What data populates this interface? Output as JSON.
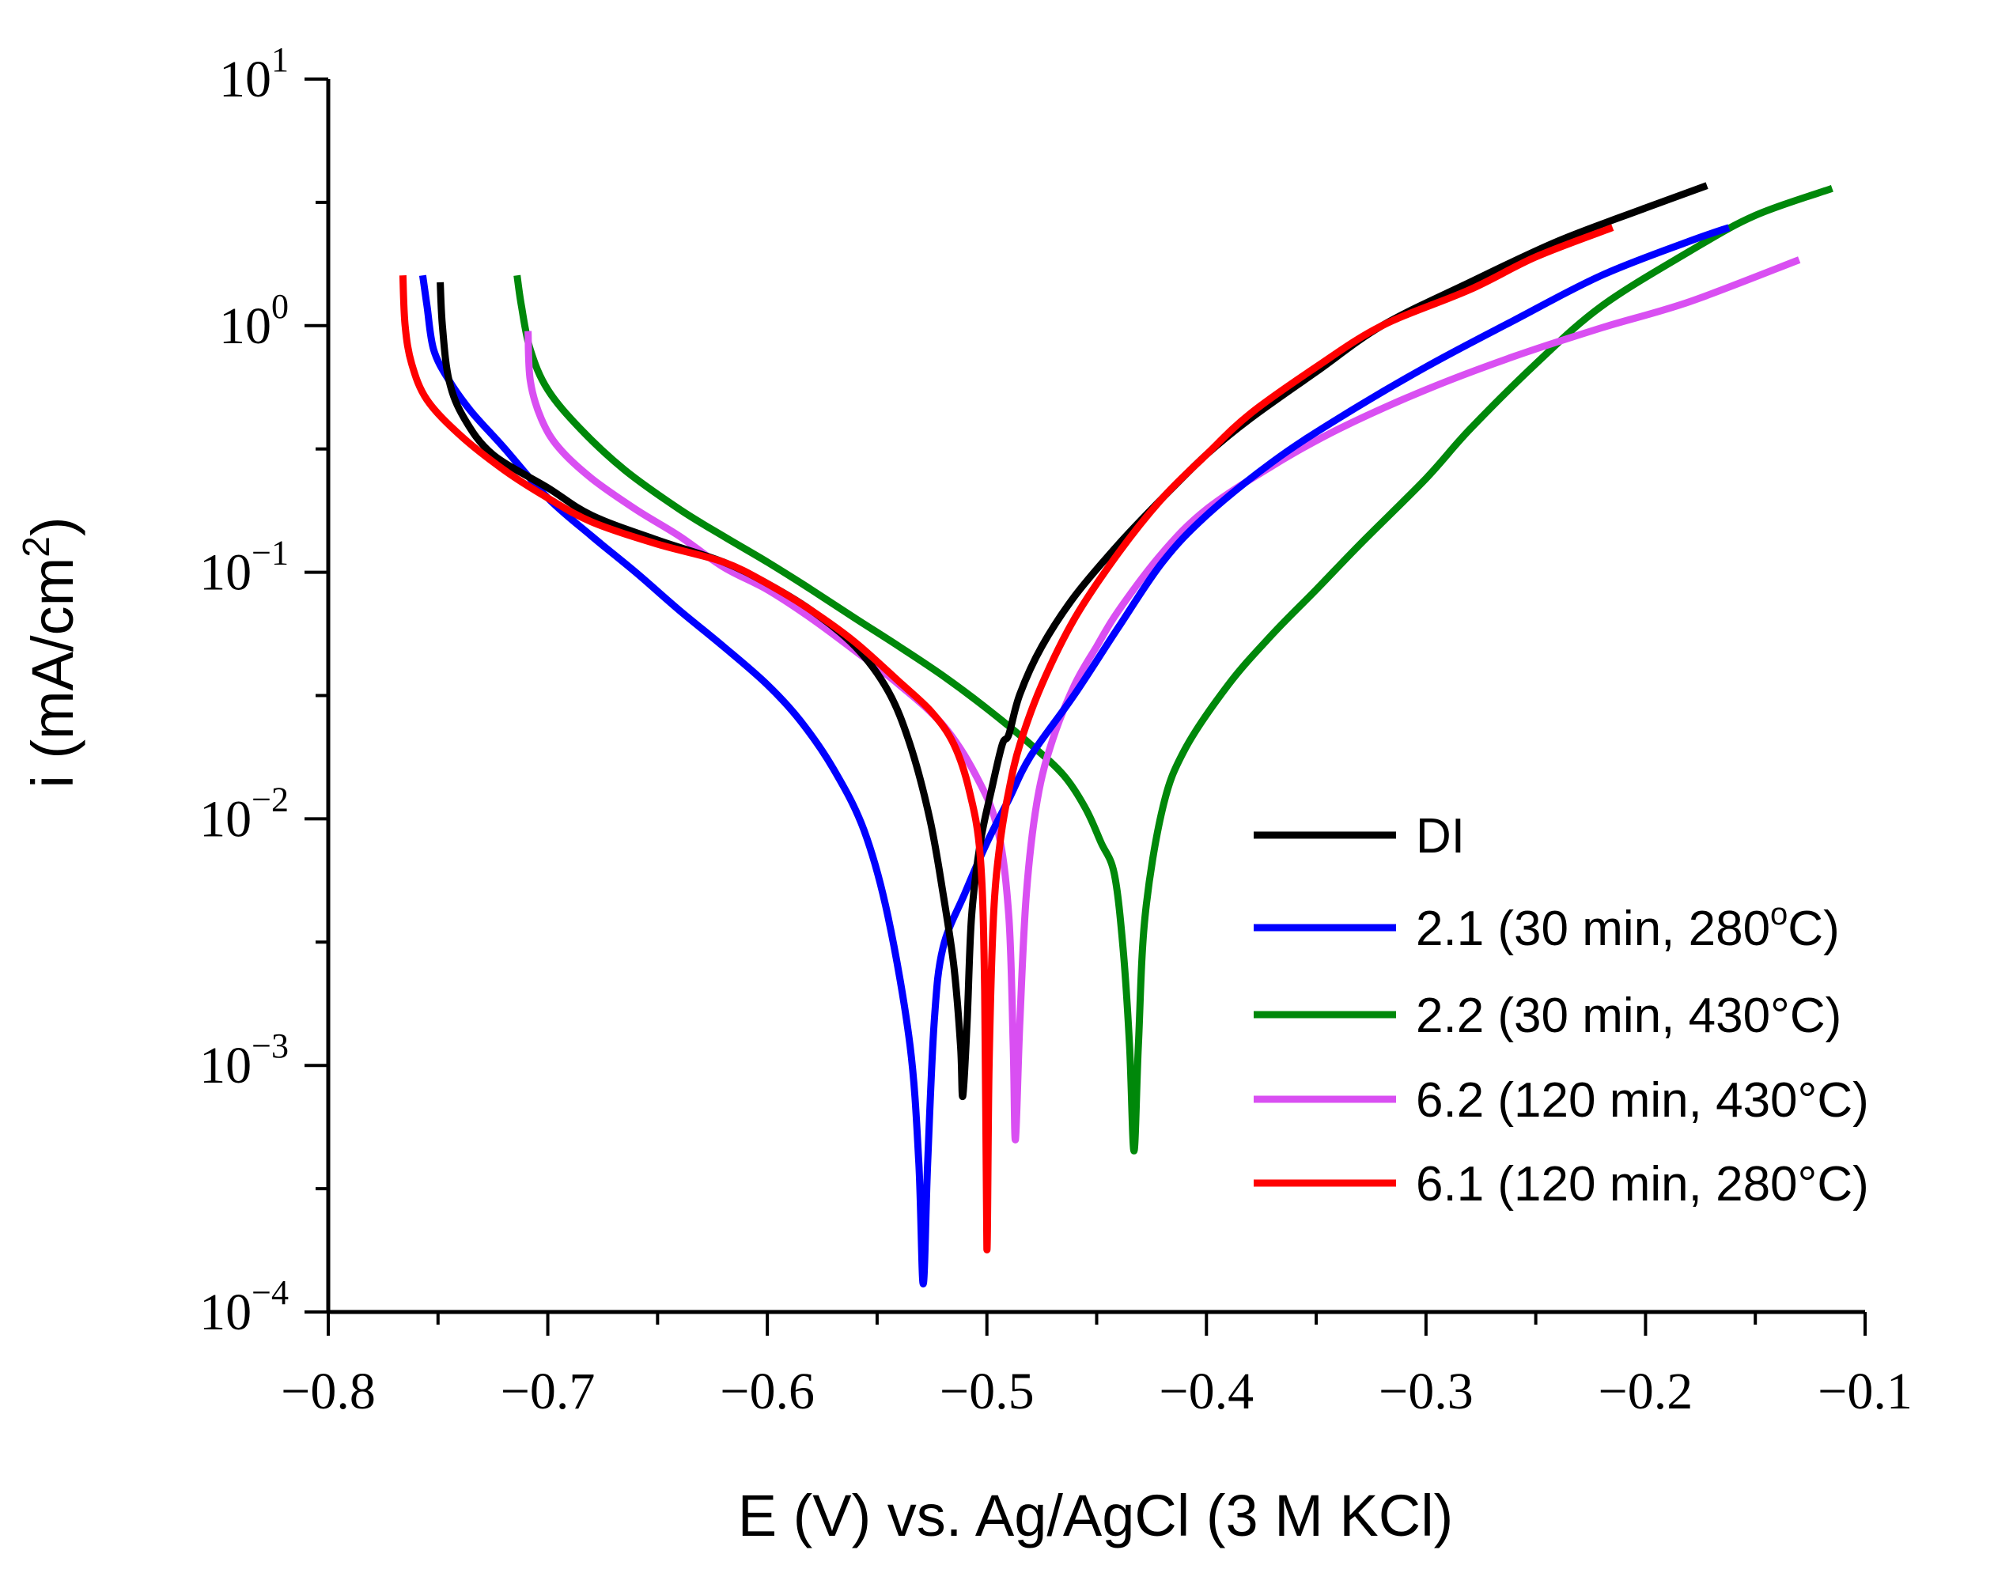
{
  "chart_data": {
    "type": "line",
    "title": "",
    "xlabel": "E (V) vs. Ag/AgCl (3 M KCl)",
    "ylabel_parts": {
      "main": "i (mA/cm",
      "sup": "2",
      "close": ")"
    },
    "ylabel": "i (mA/cm2)",
    "xscale": "linear",
    "yscale": "log",
    "xlim": [
      -0.8,
      -0.1
    ],
    "ylim": [
      0.0001,
      10
    ],
    "x_tick_labels": [
      "−0.8",
      "−0.7",
      "−0.6",
      "−0.5",
      "−0.4",
      "−0.3",
      "−0.2",
      "−0.1"
    ],
    "x_ticks": [
      -0.8,
      -0.7,
      -0.6,
      -0.5,
      -0.4,
      -0.3,
      -0.2,
      -0.1
    ],
    "y_ticks": [
      {
        "value": 0.0001,
        "base": "10",
        "exp": "−4"
      },
      {
        "value": 0.001,
        "base": "10",
        "exp": "−3"
      },
      {
        "value": 0.01,
        "base": "10",
        "exp": "−2"
      },
      {
        "value": 0.1,
        "base": "10",
        "exp": "−1"
      },
      {
        "value": 1,
        "base": "10",
        "exp": "0"
      },
      {
        "value": 10,
        "base": "10",
        "exp": "1"
      }
    ],
    "legend_position": "lower-right",
    "series": [
      {
        "name": "DI",
        "color": "#000000",
        "points": [
          [
            -0.749,
            1.5
          ],
          [
            -0.748,
            1.0
          ],
          [
            -0.745,
            0.6
          ],
          [
            -0.738,
            0.42
          ],
          [
            -0.725,
            0.3
          ],
          [
            -0.7,
            0.22
          ],
          [
            -0.68,
            0.17
          ],
          [
            -0.65,
            0.135
          ],
          [
            -0.62,
            0.11
          ],
          [
            -0.6,
            0.09
          ],
          [
            -0.58,
            0.07
          ],
          [
            -0.56,
            0.05
          ],
          [
            -0.545,
            0.033
          ],
          [
            -0.535,
            0.02
          ],
          [
            -0.526,
            0.01
          ],
          [
            -0.52,
            0.005
          ],
          [
            -0.515,
            0.0025
          ],
          [
            -0.512,
            0.0012
          ],
          [
            -0.511,
            0.00075
          ],
          [
            -0.509,
            0.0015
          ],
          [
            -0.507,
            0.004
          ],
          [
            -0.503,
            0.008
          ],
          [
            -0.498,
            0.013
          ],
          [
            -0.493,
            0.02
          ],
          [
            -0.49,
            0.022
          ],
          [
            -0.485,
            0.032
          ],
          [
            -0.475,
            0.05
          ],
          [
            -0.46,
            0.08
          ],
          [
            -0.44,
            0.13
          ],
          [
            -0.42,
            0.2
          ],
          [
            -0.4,
            0.3
          ],
          [
            -0.38,
            0.42
          ],
          [
            -0.35,
            0.65
          ],
          [
            -0.32,
            1.0
          ],
          [
            -0.28,
            1.5
          ],
          [
            -0.24,
            2.2
          ],
          [
            -0.2,
            3.0
          ],
          [
            -0.172,
            3.7
          ]
        ]
      },
      {
        "name": "2.1 (30 min, 280°C)",
        "legend_parts": {
          "pre": "2.1 (30 min, 280",
          "sup": "o",
          "post": "C)"
        },
        "color": "#0000ff",
        "points": [
          [
            -0.757,
            1.6
          ],
          [
            -0.755,
            1.2
          ],
          [
            -0.752,
            0.8
          ],
          [
            -0.745,
            0.6
          ],
          [
            -0.735,
            0.45
          ],
          [
            -0.72,
            0.32
          ],
          [
            -0.7,
            0.2
          ],
          [
            -0.68,
            0.14
          ],
          [
            -0.66,
            0.1
          ],
          [
            -0.64,
            0.07
          ],
          [
            -0.62,
            0.05
          ],
          [
            -0.6,
            0.035
          ],
          [
            -0.585,
            0.025
          ],
          [
            -0.57,
            0.016
          ],
          [
            -0.556,
            0.009
          ],
          [
            -0.545,
            0.004
          ],
          [
            -0.535,
            0.0012
          ],
          [
            -0.531,
            0.0004
          ],
          [
            -0.529,
            0.00013
          ],
          [
            -0.527,
            0.0004
          ],
          [
            -0.524,
            0.0015
          ],
          [
            -0.52,
            0.003
          ],
          [
            -0.51,
            0.005
          ],
          [
            -0.5,
            0.008
          ],
          [
            -0.49,
            0.012
          ],
          [
            -0.48,
            0.018
          ],
          [
            -0.46,
            0.032
          ],
          [
            -0.44,
            0.06
          ],
          [
            -0.42,
            0.11
          ],
          [
            -0.4,
            0.17
          ],
          [
            -0.37,
            0.28
          ],
          [
            -0.34,
            0.42
          ],
          [
            -0.3,
            0.68
          ],
          [
            -0.26,
            1.05
          ],
          [
            -0.22,
            1.6
          ],
          [
            -0.18,
            2.2
          ],
          [
            -0.162,
            2.5
          ]
        ]
      },
      {
        "name": "2.2 (30 min, 430°C)",
        "color": "#00880a",
        "points": [
          [
            -0.714,
            1.6
          ],
          [
            -0.712,
            1.2
          ],
          [
            -0.708,
            0.8
          ],
          [
            -0.7,
            0.55
          ],
          [
            -0.685,
            0.38
          ],
          [
            -0.665,
            0.26
          ],
          [
            -0.64,
            0.18
          ],
          [
            -0.62,
            0.14
          ],
          [
            -0.6,
            0.11
          ],
          [
            -0.58,
            0.085
          ],
          [
            -0.56,
            0.065
          ],
          [
            -0.54,
            0.05
          ],
          [
            -0.52,
            0.038
          ],
          [
            -0.5,
            0.028
          ],
          [
            -0.48,
            0.02
          ],
          [
            -0.465,
            0.015
          ],
          [
            -0.455,
            0.011
          ],
          [
            -0.448,
            0.008
          ],
          [
            -0.442,
            0.006
          ],
          [
            -0.438,
            0.003
          ],
          [
            -0.435,
            0.0012
          ],
          [
            -0.433,
            0.00045
          ],
          [
            -0.431,
            0.0012
          ],
          [
            -0.428,
            0.004
          ],
          [
            -0.42,
            0.011
          ],
          [
            -0.41,
            0.019
          ],
          [
            -0.39,
            0.035
          ],
          [
            -0.37,
            0.056
          ],
          [
            -0.35,
            0.085
          ],
          [
            -0.33,
            0.13
          ],
          [
            -0.3,
            0.24
          ],
          [
            -0.28,
            0.38
          ],
          [
            -0.25,
            0.7
          ],
          [
            -0.22,
            1.2
          ],
          [
            -0.18,
            2.0
          ],
          [
            -0.15,
            2.8
          ],
          [
            -0.115,
            3.6
          ]
        ]
      },
      {
        "name": "6.2 (120 min, 430°C)",
        "color": "#d94ff2",
        "points": [
          [
            -0.709,
            0.95
          ],
          [
            -0.708,
            0.6
          ],
          [
            -0.703,
            0.42
          ],
          [
            -0.695,
            0.32
          ],
          [
            -0.68,
            0.24
          ],
          [
            -0.66,
            0.18
          ],
          [
            -0.64,
            0.14
          ],
          [
            -0.62,
            0.105
          ],
          [
            -0.6,
            0.085
          ],
          [
            -0.58,
            0.065
          ],
          [
            -0.56,
            0.048
          ],
          [
            -0.54,
            0.035
          ],
          [
            -0.52,
            0.024
          ],
          [
            -0.505,
            0.015
          ],
          [
            -0.495,
            0.009
          ],
          [
            -0.49,
            0.004
          ],
          [
            -0.488,
            0.0012
          ],
          [
            -0.487,
            0.0005
          ],
          [
            -0.485,
            0.0015
          ],
          [
            -0.482,
            0.005
          ],
          [
            -0.477,
            0.012
          ],
          [
            -0.47,
            0.021
          ],
          [
            -0.46,
            0.035
          ],
          [
            -0.45,
            0.05
          ],
          [
            -0.44,
            0.07
          ],
          [
            -0.42,
            0.12
          ],
          [
            -0.4,
            0.18
          ],
          [
            -0.37,
            0.27
          ],
          [
            -0.34,
            0.38
          ],
          [
            -0.3,
            0.55
          ],
          [
            -0.26,
            0.75
          ],
          [
            -0.22,
            0.98
          ],
          [
            -0.18,
            1.25
          ],
          [
            -0.13,
            1.85
          ]
        ]
      },
      {
        "name": "6.1 (120 min, 280°C)",
        "color": "#ff0000",
        "points": [
          [
            -0.766,
            1.6
          ],
          [
            -0.765,
            1.0
          ],
          [
            -0.762,
            0.7
          ],
          [
            -0.755,
            0.5
          ],
          [
            -0.74,
            0.36
          ],
          [
            -0.72,
            0.26
          ],
          [
            -0.7,
            0.2
          ],
          [
            -0.68,
            0.16
          ],
          [
            -0.65,
            0.13
          ],
          [
            -0.62,
            0.11
          ],
          [
            -0.6,
            0.09
          ],
          [
            -0.58,
            0.07
          ],
          [
            -0.56,
            0.052
          ],
          [
            -0.54,
            0.036
          ],
          [
            -0.525,
            0.027
          ],
          [
            -0.515,
            0.02
          ],
          [
            -0.508,
            0.013
          ],
          [
            -0.503,
            0.007
          ],
          [
            -0.501,
            0.002
          ],
          [
            -0.5,
            0.00018
          ],
          [
            -0.499,
            0.001
          ],
          [
            -0.497,
            0.004
          ],
          [
            -0.494,
            0.008
          ],
          [
            -0.49,
            0.013
          ],
          [
            -0.485,
            0.02
          ],
          [
            -0.475,
            0.035
          ],
          [
            -0.46,
            0.065
          ],
          [
            -0.44,
            0.12
          ],
          [
            -0.42,
            0.2
          ],
          [
            -0.4,
            0.3
          ],
          [
            -0.38,
            0.44
          ],
          [
            -0.35,
            0.68
          ],
          [
            -0.32,
            1.0
          ],
          [
            -0.28,
            1.4
          ],
          [
            -0.25,
            1.9
          ],
          [
            -0.215,
            2.5
          ]
        ]
      }
    ]
  }
}
